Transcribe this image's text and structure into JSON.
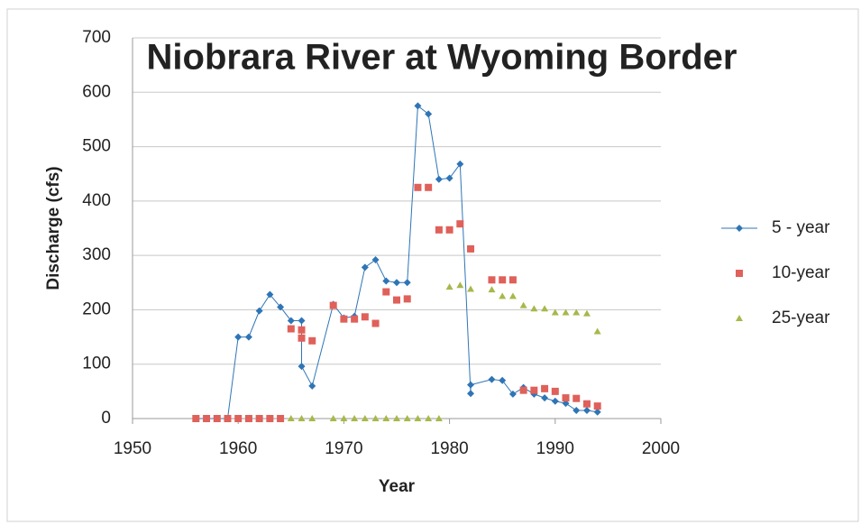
{
  "chart_data": {
    "type": "scatter",
    "title": "Niobrara River at Wyoming Border",
    "x_label": "Year",
    "y_label": "Discharge (cfs)",
    "xlim": [
      1950,
      2000
    ],
    "xticks": [
      1950,
      1960,
      1970,
      1980,
      1990,
      2000
    ],
    "ylim": [
      0,
      700
    ],
    "yticks": [
      0,
      100,
      200,
      300,
      400,
      500,
      600,
      700
    ],
    "grid": true,
    "legend": "right",
    "series": [
      {
        "name": "5 - year",
        "color": "#2e75b6",
        "marker": "diamond",
        "line": true,
        "x": [
          1956,
          1957,
          1958,
          1959,
          1960,
          1961,
          1962,
          1963,
          1964,
          1965,
          1966,
          1966,
          1967,
          1969,
          1970,
          1971,
          1972,
          1973,
          1974,
          1975,
          1976,
          1977,
          1978,
          1979,
          1980,
          1981,
          1982,
          1982,
          1984,
          1985,
          1986,
          1987,
          1988,
          1989,
          1990,
          1991,
          1992,
          1993,
          1994
        ],
        "values": [
          0,
          0,
          0,
          0,
          150,
          150,
          198,
          228,
          205,
          180,
          180,
          96,
          60,
          210,
          185,
          188,
          278,
          292,
          253,
          250,
          250,
          575,
          560,
          440,
          442,
          468,
          46,
          62,
          72,
          70,
          45,
          57,
          45,
          38,
          32,
          28,
          15,
          15,
          12
        ]
      },
      {
        "name": "10-year",
        "color": "#e0605a",
        "marker": "square",
        "line": false,
        "x": [
          1956,
          1957,
          1958,
          1959,
          1960,
          1961,
          1962,
          1963,
          1964,
          1965,
          1966,
          1966,
          1967,
          1969,
          1970,
          1971,
          1972,
          1973,
          1974,
          1975,
          1976,
          1977,
          1978,
          1979,
          1980,
          1981,
          1982,
          1984,
          1985,
          1986,
          1987,
          1988,
          1989,
          1990,
          1991,
          1992,
          1993,
          1994
        ],
        "values": [
          0,
          0,
          0,
          0,
          0,
          0,
          0,
          0,
          0,
          165,
          163,
          148,
          143,
          208,
          183,
          183,
          187,
          175,
          233,
          218,
          220,
          425,
          425,
          347,
          347,
          358,
          312,
          255,
          255,
          255,
          52,
          52,
          55,
          50,
          38,
          37,
          27,
          23
        ]
      },
      {
        "name": "25-year",
        "color": "#a8b84a",
        "marker": "triangle",
        "line": false,
        "x": [
          1965,
          1966,
          1967,
          1969,
          1970,
          1971,
          1972,
          1973,
          1974,
          1975,
          1976,
          1977,
          1978,
          1979,
          1980,
          1981,
          1982,
          1984,
          1985,
          1986,
          1987,
          1988,
          1989,
          1990,
          1991,
          1992,
          1993,
          1994
        ],
        "values": [
          0,
          0,
          0,
          0,
          0,
          0,
          0,
          0,
          0,
          0,
          0,
          0,
          0,
          0,
          242,
          245,
          238,
          237,
          225,
          225,
          208,
          202,
          202,
          195,
          195,
          195,
          193,
          160
        ]
      }
    ]
  }
}
